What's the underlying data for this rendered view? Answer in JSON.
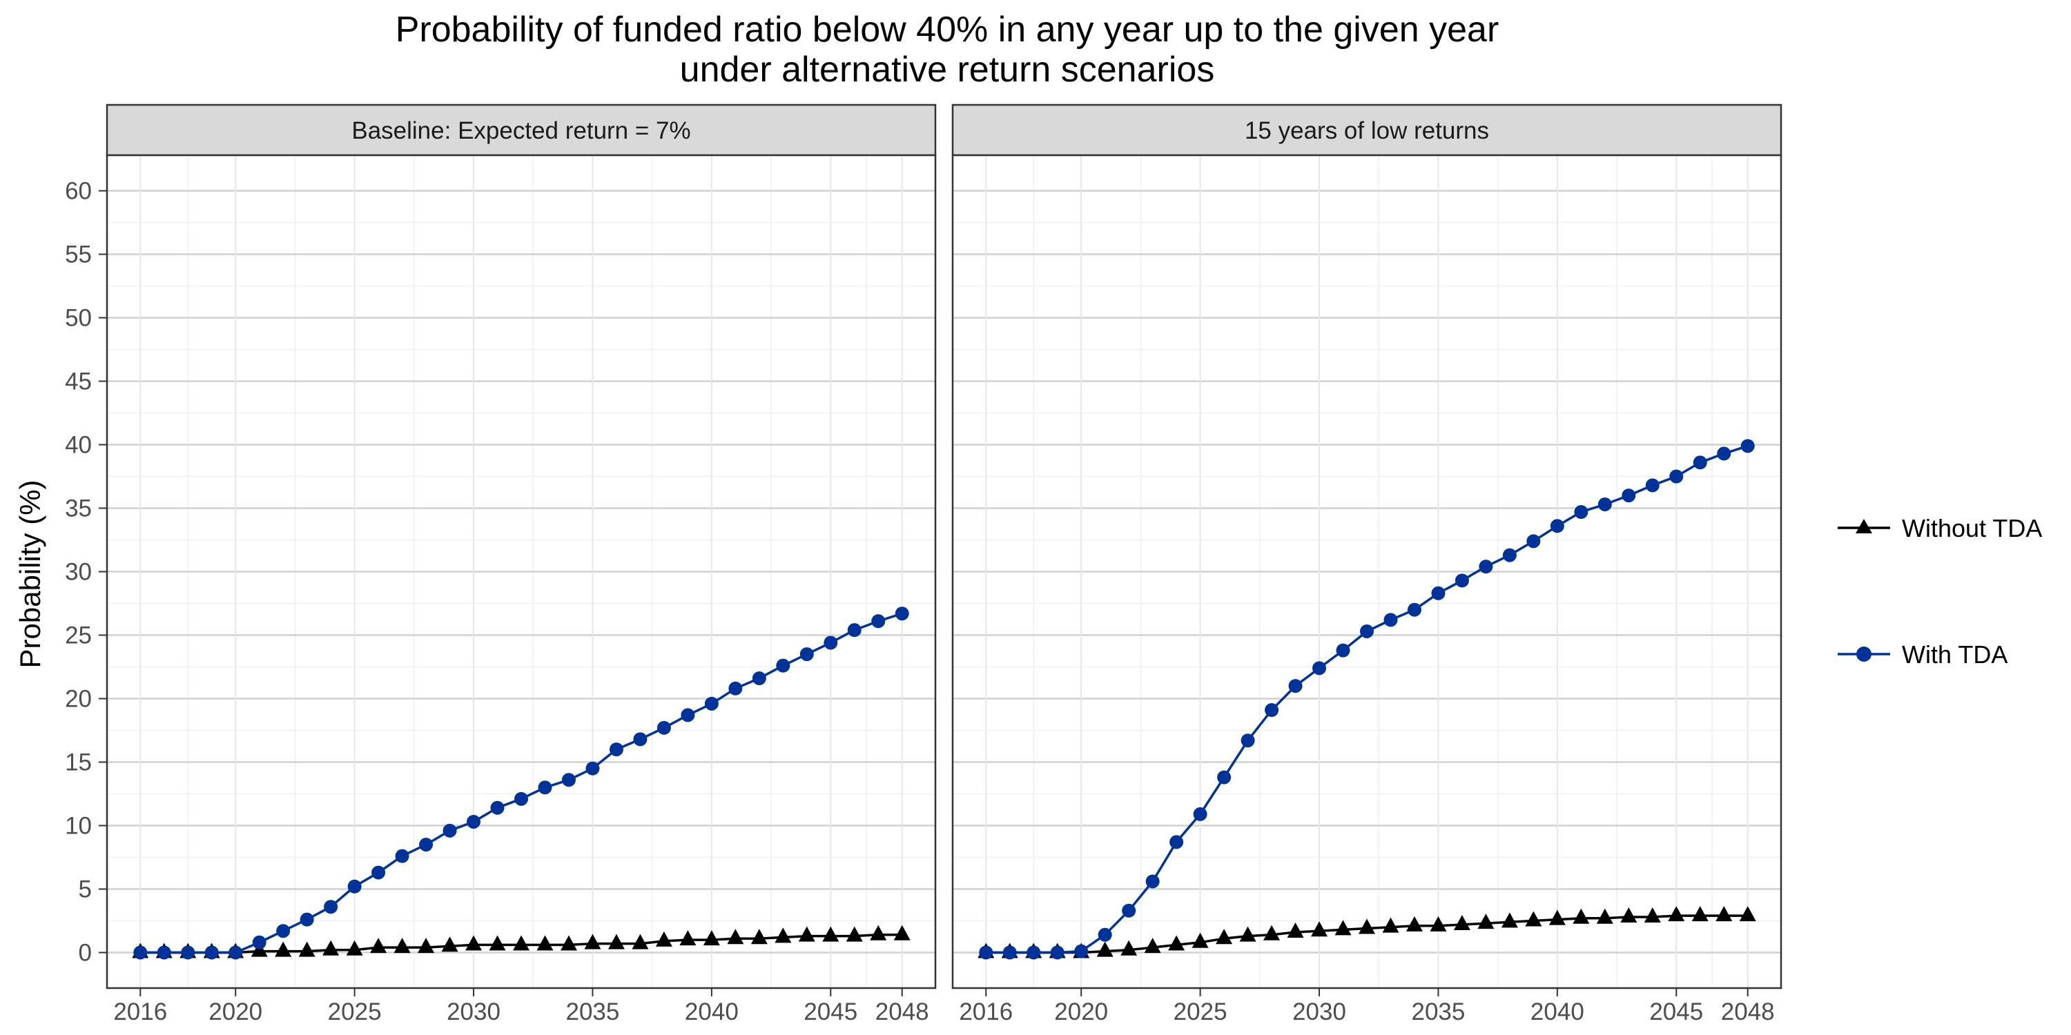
{
  "chart_data": {
    "type": "line",
    "title": "Probability of funded ratio below 40% in any year up to the given year",
    "subtitle": "under alternative return scenarios",
    "ylabel": "Probability (%)",
    "xlabel": "",
    "ylim": [
      -2.8,
      62.8
    ],
    "xlim": [
      2014.6,
      2049.4
    ],
    "y_ticks": [
      0,
      5,
      10,
      15,
      20,
      25,
      30,
      35,
      40,
      45,
      50,
      55,
      60
    ],
    "x_ticks": [
      2016,
      2020,
      2025,
      2030,
      2035,
      2040,
      2045,
      2048
    ],
    "grid": true,
    "legend_position": "right",
    "legend": [
      {
        "label": "Without TDA",
        "marker": "triangle",
        "color": "#000000"
      },
      {
        "label": "With TDA",
        "marker": "circle",
        "color": "#003399"
      }
    ],
    "x": [
      2016,
      2017,
      2018,
      2019,
      2020,
      2021,
      2022,
      2023,
      2024,
      2025,
      2026,
      2027,
      2028,
      2029,
      2030,
      2031,
      2032,
      2033,
      2034,
      2035,
      2036,
      2037,
      2038,
      2039,
      2040,
      2041,
      2042,
      2043,
      2044,
      2045,
      2046,
      2047,
      2048
    ],
    "panels": [
      {
        "label": "Baseline: Expected return = 7%",
        "series": [
          {
            "name": "Without TDA",
            "color": "#000000",
            "marker": "triangle",
            "values": [
              0,
              0,
              0,
              0,
              0,
              0.1,
              0.1,
              0.1,
              0.2,
              0.2,
              0.4,
              0.4,
              0.4,
              0.5,
              0.6,
              0.6,
              0.6,
              0.6,
              0.6,
              0.7,
              0.7,
              0.7,
              0.9,
              1.0,
              1.0,
              1.1,
              1.1,
              1.2,
              1.3,
              1.3,
              1.3,
              1.4,
              1.4
            ]
          },
          {
            "name": "With TDA",
            "color": "#003399",
            "marker": "circle",
            "values": [
              0,
              0,
              0,
              0,
              0,
              0.8,
              1.7,
              2.6,
              3.6,
              5.2,
              6.3,
              7.6,
              8.5,
              9.6,
              10.3,
              11.4,
              12.1,
              13.0,
              13.6,
              14.5,
              16.0,
              16.8,
              17.7,
              18.7,
              19.6,
              20.8,
              21.6,
              22.6,
              23.5,
              24.4,
              25.4,
              26.1,
              26.7
            ]
          }
        ]
      },
      {
        "label": "15 years of low returns",
        "series": [
          {
            "name": "Without TDA",
            "color": "#000000",
            "marker": "triangle",
            "values": [
              0,
              0,
              0,
              0,
              0,
              0.1,
              0.2,
              0.4,
              0.6,
              0.8,
              1.1,
              1.3,
              1.4,
              1.6,
              1.7,
              1.8,
              1.9,
              2.0,
              2.1,
              2.1,
              2.2,
              2.3,
              2.4,
              2.5,
              2.6,
              2.7,
              2.7,
              2.8,
              2.8,
              2.9,
              2.9,
              2.9,
              2.9
            ]
          },
          {
            "name": "With TDA",
            "color": "#003399",
            "marker": "circle",
            "values": [
              0,
              0,
              0,
              0,
              0.1,
              1.4,
              3.3,
              5.6,
              8.7,
              10.9,
              13.8,
              16.7,
              19.1,
              21.0,
              22.4,
              23.8,
              25.3,
              26.2,
              27.0,
              28.3,
              29.3,
              30.4,
              31.3,
              32.4,
              33.6,
              34.7,
              35.3,
              36.0,
              36.8,
              37.5,
              38.6,
              39.3,
              39.9
            ]
          }
        ]
      }
    ]
  }
}
